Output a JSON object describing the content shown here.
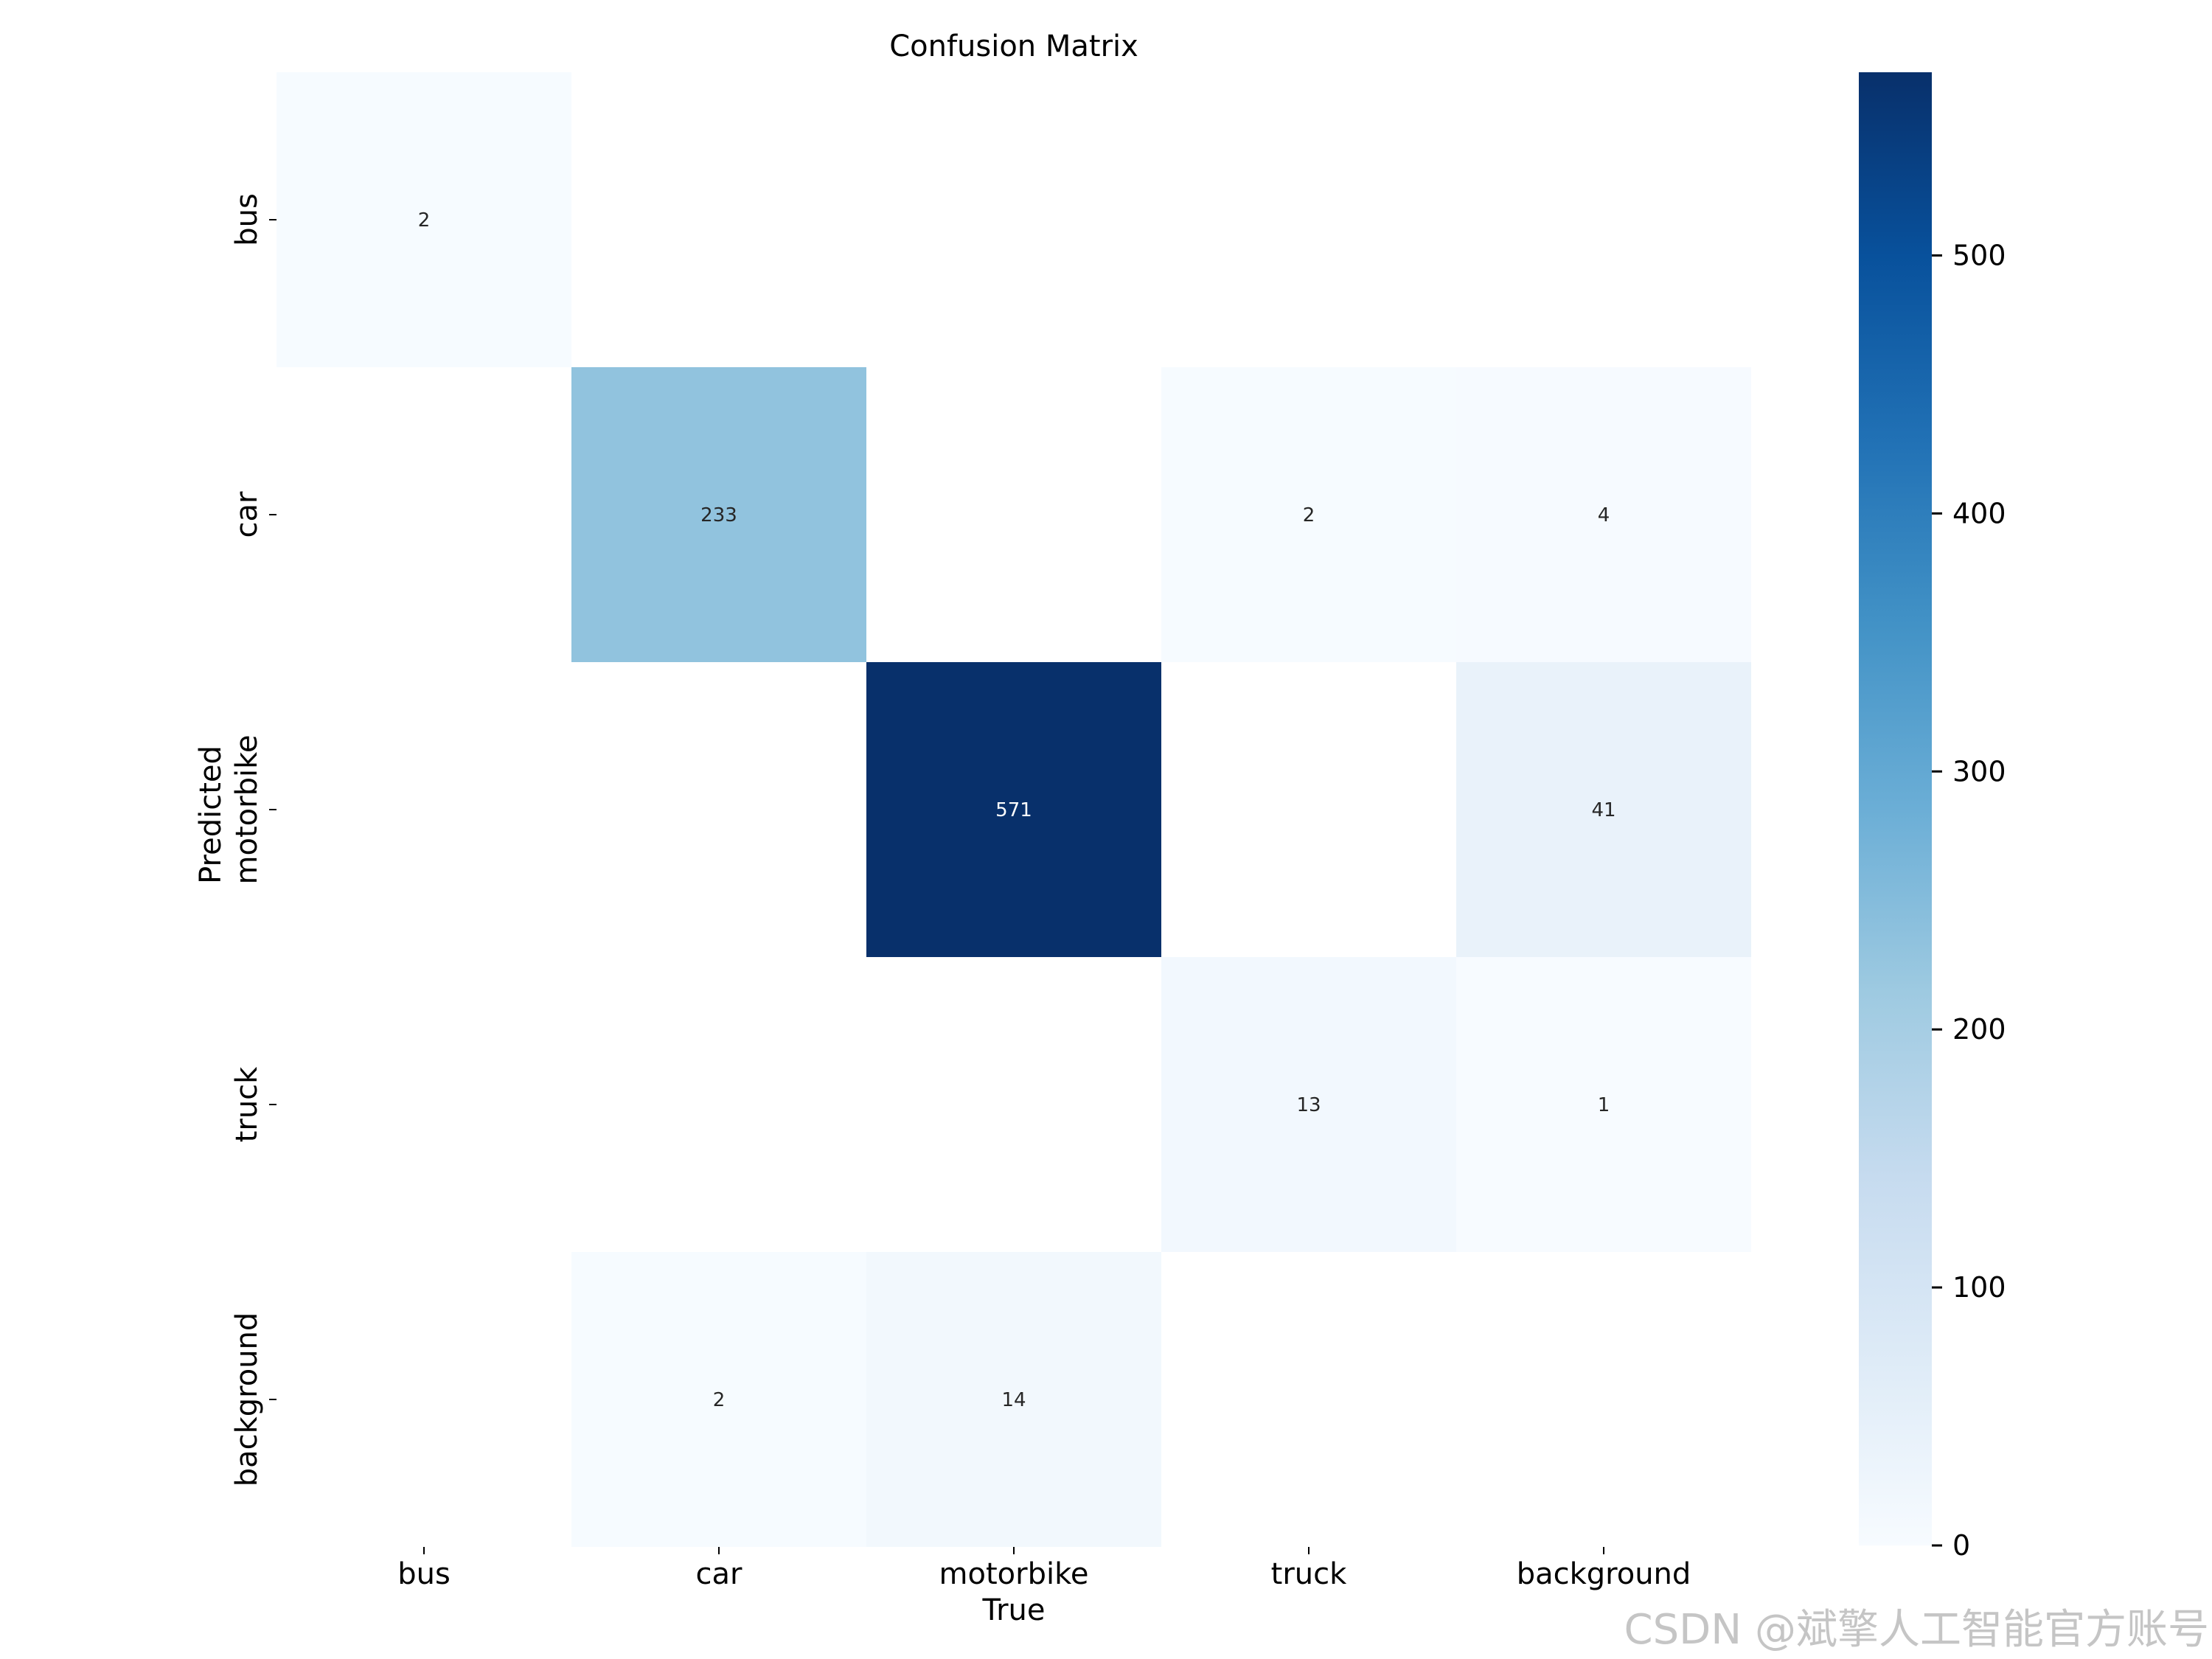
{
  "chart_data": {
    "type": "heatmap",
    "title": "Confusion Matrix",
    "xlabel": "True",
    "ylabel": "Predicted",
    "x_categories": [
      "bus",
      "car",
      "motorbike",
      "truck",
      "background"
    ],
    "y_categories": [
      "bus",
      "car",
      "motorbike",
      "truck",
      "background"
    ],
    "values": [
      [
        2,
        null,
        null,
        null,
        null
      ],
      [
        null,
        233,
        null,
        2,
        4
      ],
      [
        null,
        null,
        571,
        null,
        41
      ],
      [
        null,
        null,
        null,
        13,
        1
      ],
      [
        null,
        2,
        14,
        null,
        null
      ]
    ],
    "colorbar": {
      "min": 0,
      "max": 571,
      "ticks": [
        0,
        100,
        200,
        300,
        400,
        500
      ],
      "colormap": "Blues"
    }
  },
  "watermark": "CSDN @斌擎人工智能官方账号"
}
